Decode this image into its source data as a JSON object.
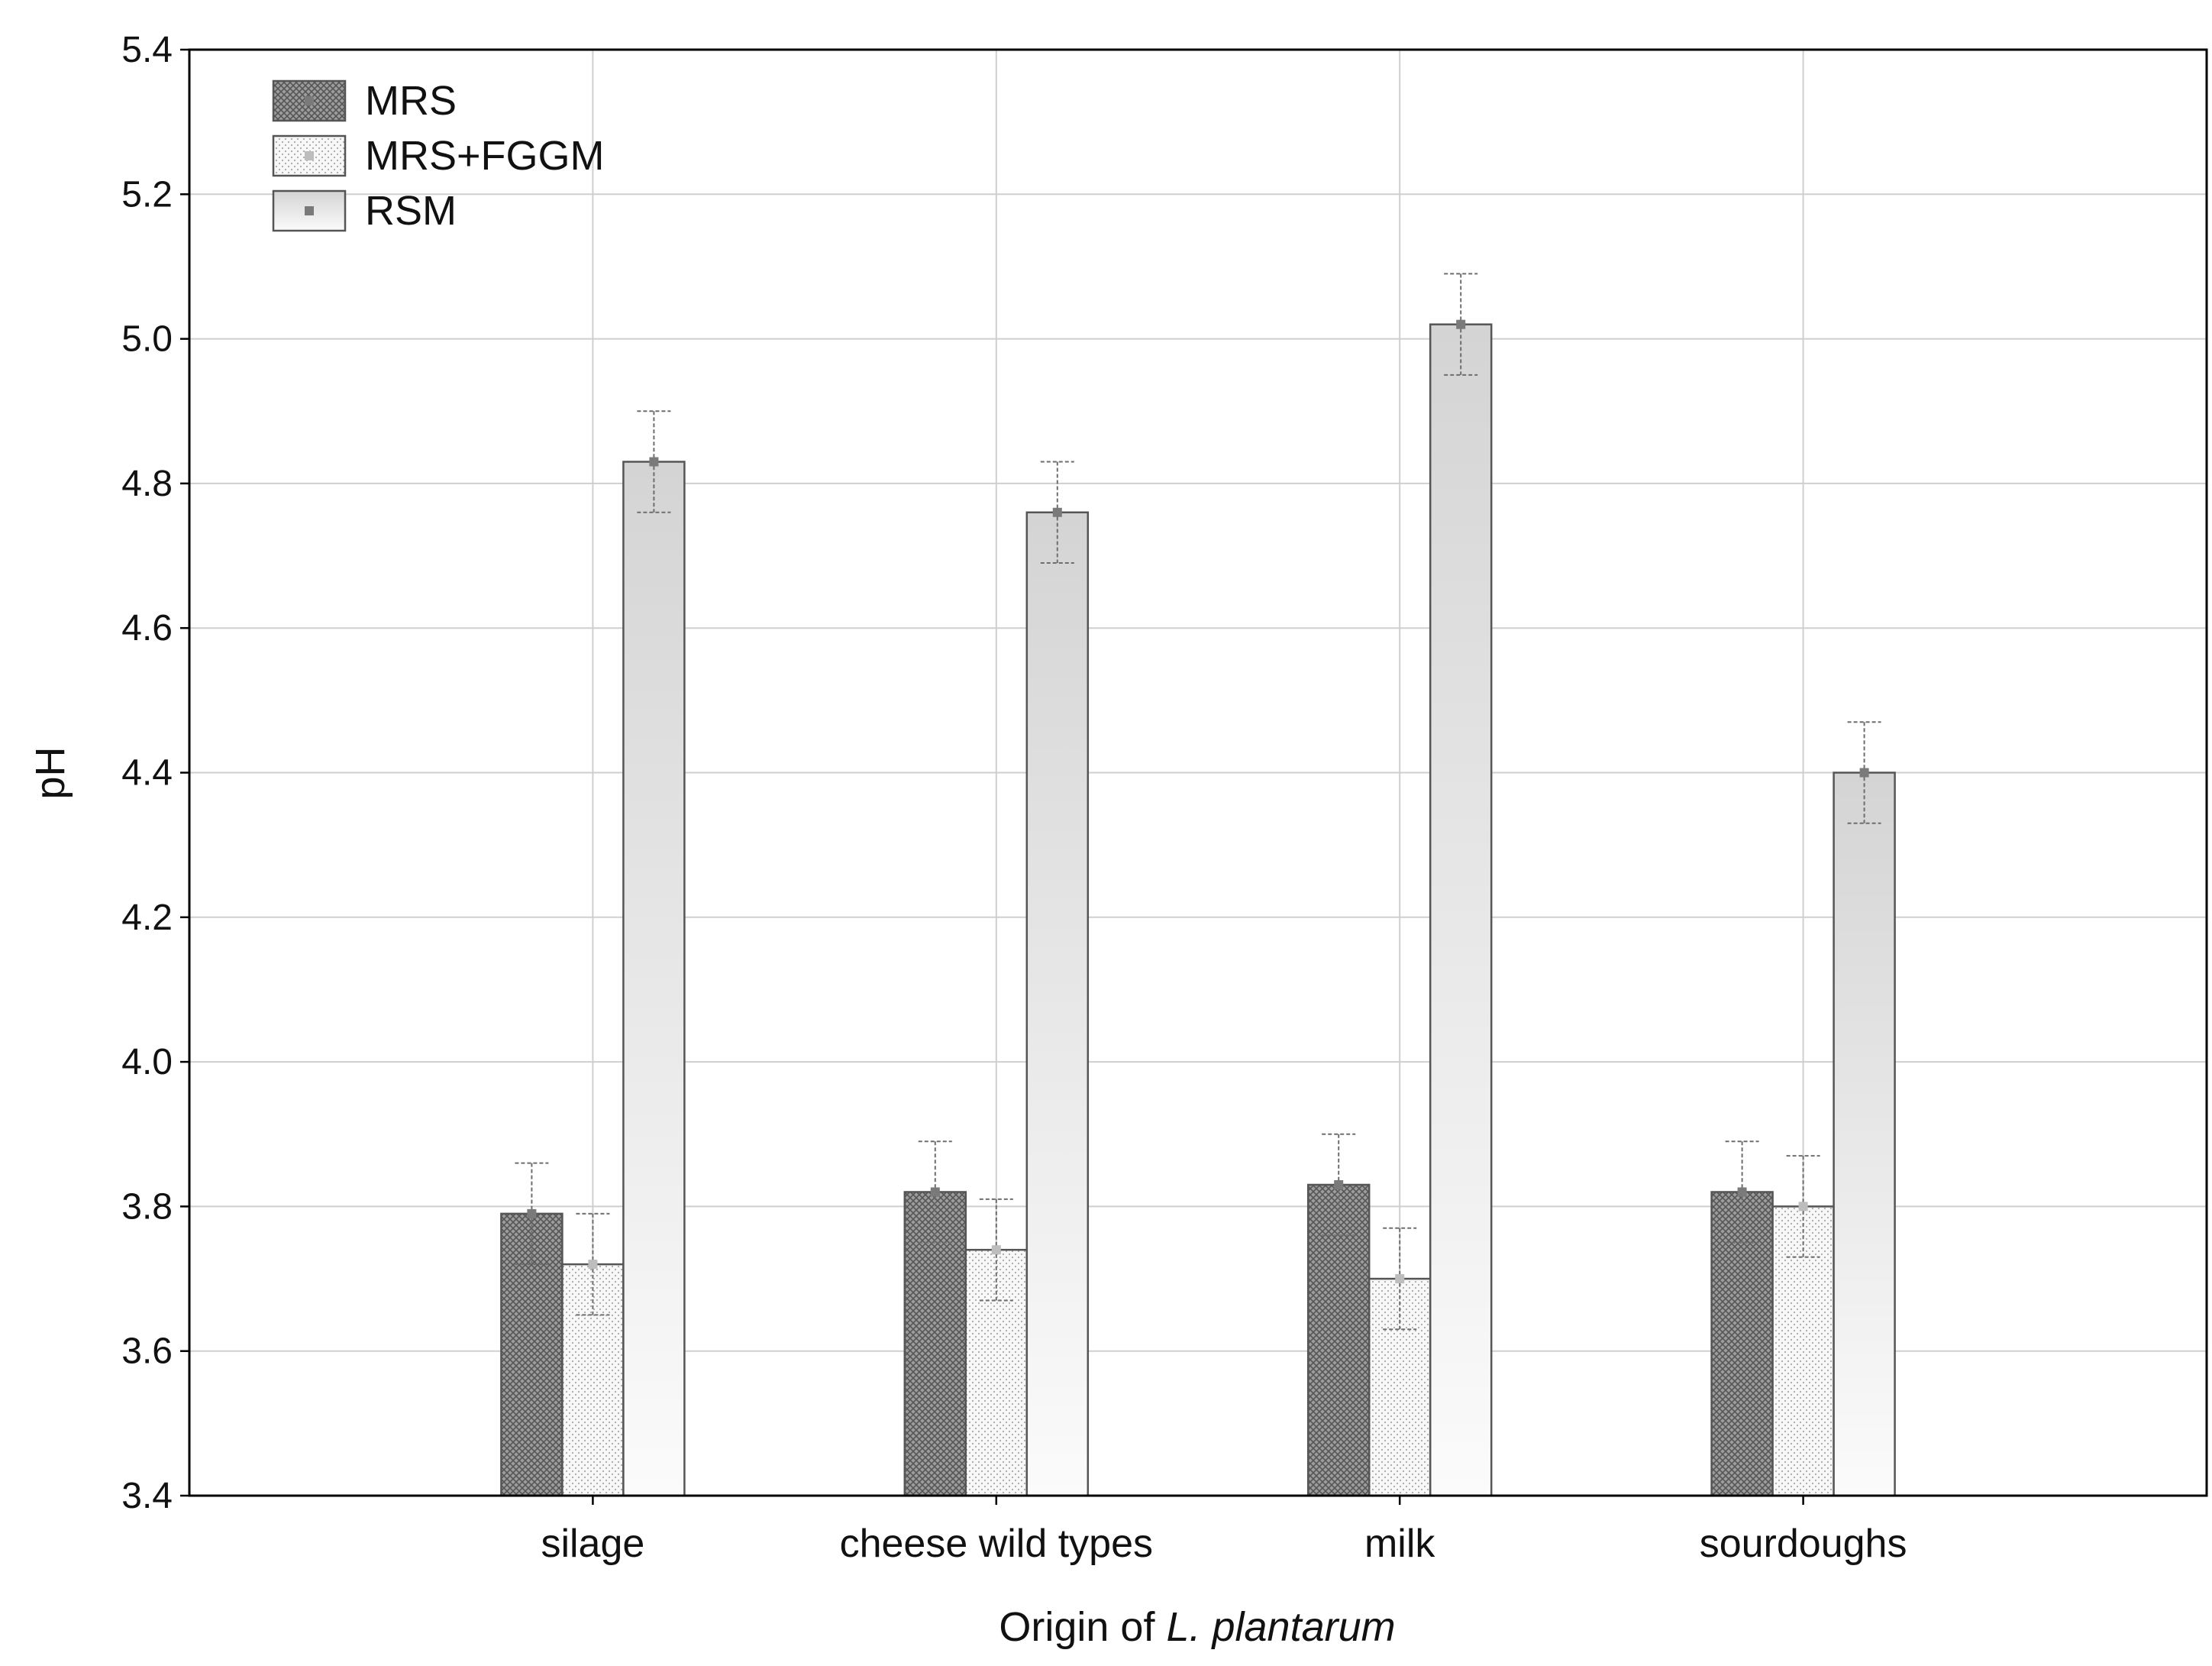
{
  "chart_data": {
    "type": "bar",
    "title": "",
    "xlabel": "Origin of L. plantarum",
    "xlabel_parts": {
      "prefix": "Origin of ",
      "italic": "L. plantarum"
    },
    "ylabel": "pH",
    "ylim": [
      3.4,
      5.4
    ],
    "yticks": [
      "3.4",
      "3.6",
      "3.8",
      "4.0",
      "4.2",
      "4.4",
      "4.6",
      "4.8",
      "5.0",
      "5.2",
      "5.4"
    ],
    "grid": true,
    "legend_position": "top-left",
    "categories": [
      "silage",
      "cheese wild types",
      "milk",
      "sourdoughs"
    ],
    "series": [
      {
        "name": "MRS",
        "values": [
          3.79,
          3.82,
          3.83,
          3.82
        ],
        "errors": [
          0.07,
          0.07,
          0.07,
          0.07
        ],
        "fill": "#8a8a8a",
        "pattern": "crosshatch"
      },
      {
        "name": "MRS+FGGM",
        "values": [
          3.72,
          3.74,
          3.7,
          3.8
        ],
        "errors": [
          0.07,
          0.07,
          0.07,
          0.07
        ],
        "fill": "#f4f4f4",
        "pattern": "dots"
      },
      {
        "name": "RSM",
        "values": [
          4.83,
          4.76,
          5.02,
          4.4
        ],
        "errors": [
          0.07,
          0.07,
          0.07,
          0.07
        ],
        "fill": "#dcdcdc",
        "pattern": "gradient"
      }
    ]
  }
}
